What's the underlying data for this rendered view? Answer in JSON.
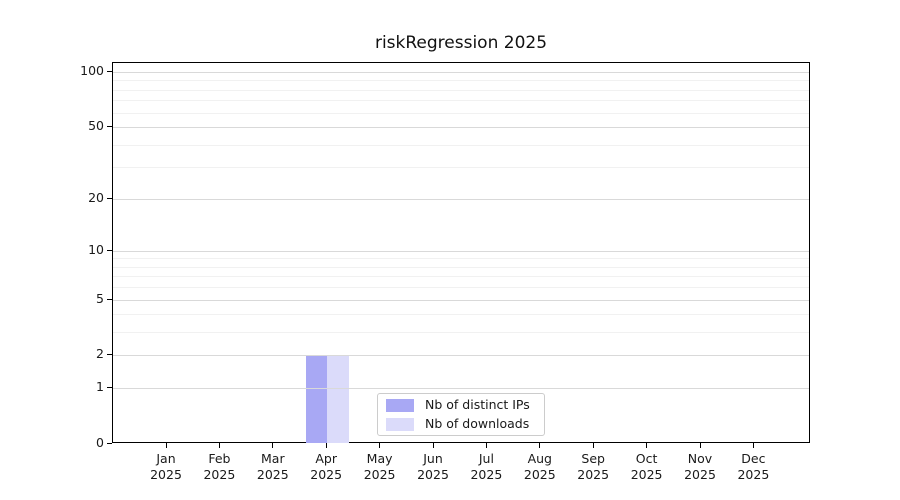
{
  "chart_data": {
    "type": "bar",
    "title": "riskRegression 2025",
    "categories": [
      "Jan 2025",
      "Feb 2025",
      "Mar 2025",
      "Apr 2025",
      "May 2025",
      "Jun 2025",
      "Jul 2025",
      "Aug 2025",
      "Sep 2025",
      "Oct 2025",
      "Nov 2025",
      "Dec 2025"
    ],
    "series": [
      {
        "name": "Nb of distinct IPs",
        "color": "#a8a8f4",
        "values": [
          0,
          0,
          0,
          2,
          0,
          0,
          0,
          0,
          0,
          0,
          0,
          0
        ]
      },
      {
        "name": "Nb of downloads",
        "color": "#dbdbfa",
        "values": [
          0,
          0,
          0,
          2,
          0,
          0,
          0,
          0,
          0,
          0,
          0,
          0
        ]
      }
    ],
    "xlabel": "",
    "ylabel": "",
    "y_axis": {
      "scale": "log1p",
      "tick_values": [
        0,
        1,
        2,
        5,
        10,
        20,
        50,
        100
      ],
      "minor_gridline_values": [
        3,
        4,
        6,
        7,
        8,
        9,
        30,
        40,
        60,
        70,
        80,
        90
      ],
      "ylim": [
        0,
        114
      ]
    },
    "grid": true,
    "legend_position": "inside-bottom-center"
  },
  "colors": {
    "background": "#ffffff",
    "axis_frame": "#000000",
    "major_grid": "#d9d9d9",
    "minor_grid": "#f1f1f1",
    "text": "#1a1a1a",
    "legend_border": "#cccccc"
  }
}
